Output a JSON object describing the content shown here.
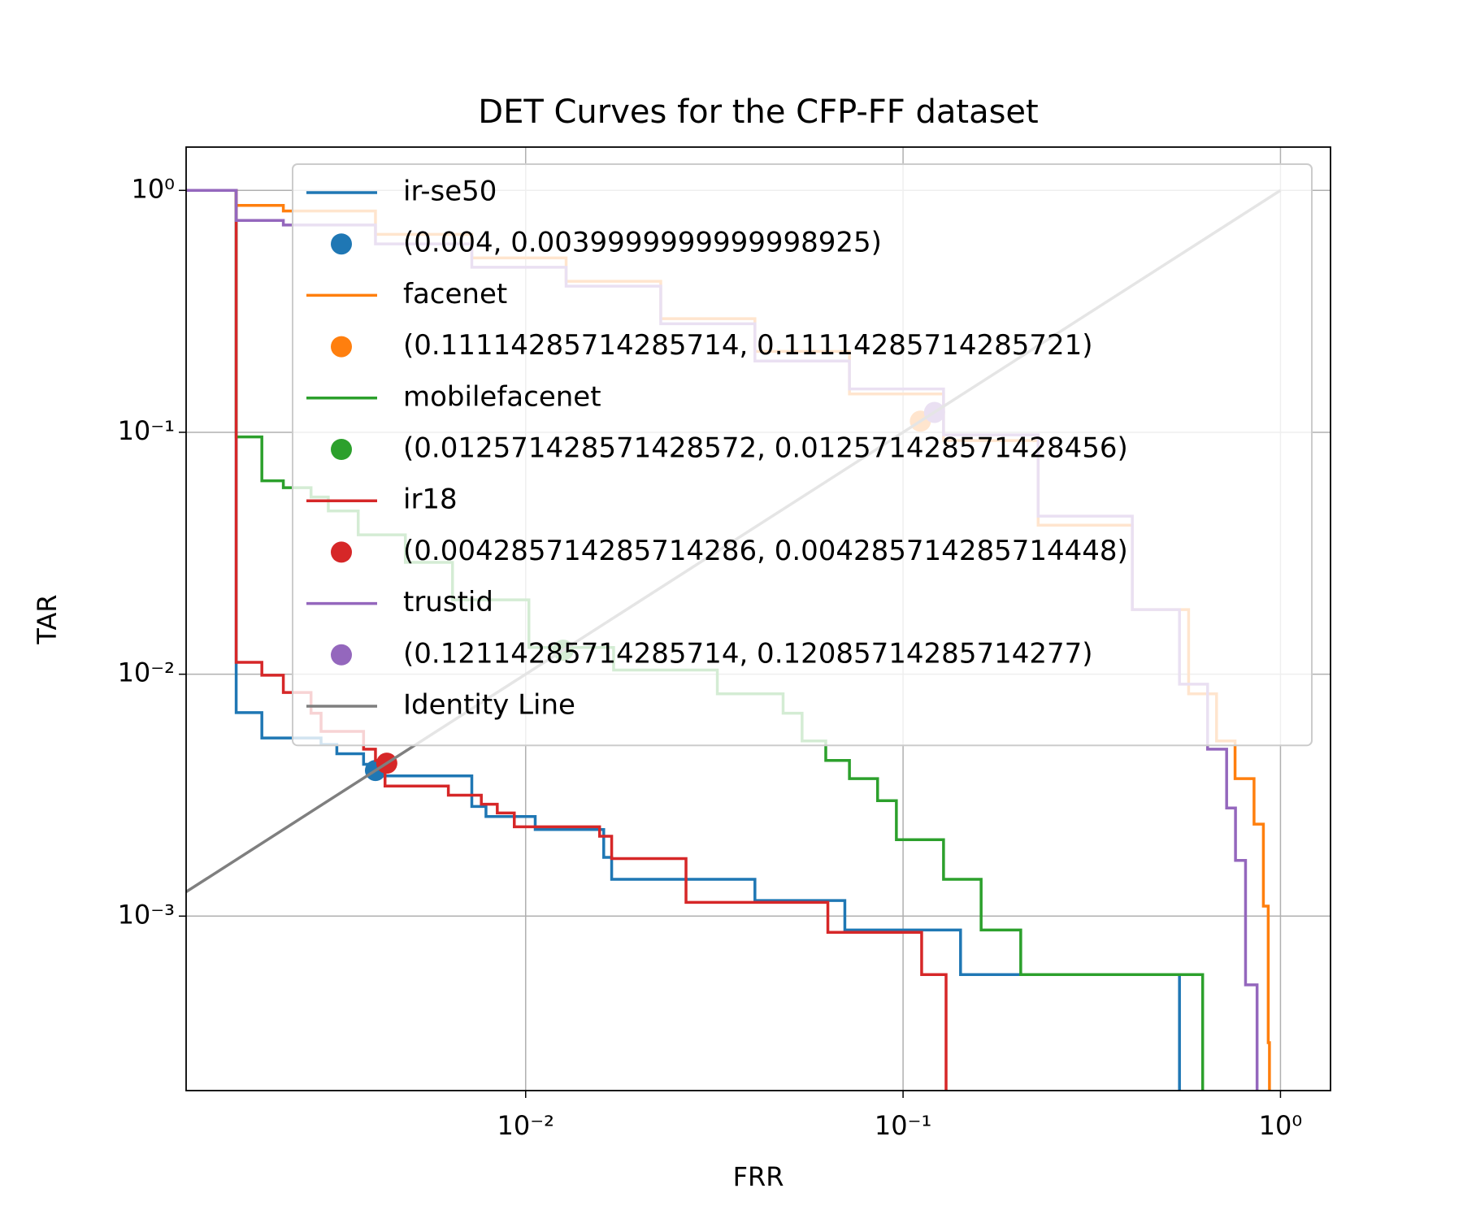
{
  "chart_data": {
    "type": "line",
    "title": "DET Curves for the CFP-FF dataset",
    "xlabel": "FRR",
    "ylabel": "TAR",
    "xscale": "log",
    "yscale": "log",
    "grid": true,
    "legend": "upper right",
    "drawstyle": "steps-post",
    "xlim": [
      0.00126,
      1.357
    ],
    "ylim": [
      0.00019,
      1.51
    ],
    "xticks": [
      {
        "value": 0.01,
        "label": "10⁻²"
      },
      {
        "value": 0.1,
        "label": "10⁻¹"
      },
      {
        "value": 1,
        "label": "10⁰"
      }
    ],
    "yticks": [
      {
        "value": 0.001,
        "label": "10⁻³"
      },
      {
        "value": 0.01,
        "label": "10⁻²"
      },
      {
        "value": 0.1,
        "label": "10⁻¹"
      },
      {
        "value": 1,
        "label": "10⁰"
      }
    ],
    "series": [
      {
        "name": "ir-se50",
        "kind": "line",
        "color": "#1f77b4",
        "x": [
          0.00126,
          0.00171,
          0.002,
          0.00287,
          0.00316,
          0.00372,
          0.00405,
          0.0072,
          0.00785,
          0.0106,
          0.0161,
          0.0169,
          0.0405,
          0.0701,
          0.142,
          0.54
        ],
        "y": [
          1,
          0.00694,
          0.00545,
          0.00512,
          0.00469,
          0.00424,
          0.0038,
          0.00284,
          0.00258,
          0.00228,
          0.00175,
          0.00142,
          0.00116,
          0.000876,
          0.000573,
          0.0001
        ]
      },
      {
        "name": "(0.004, 0.0039999999999998925)",
        "kind": "point",
        "color": "#1f77b4",
        "x": [
          0.004
        ],
        "y": [
          0.004
        ]
      },
      {
        "name": "facenet",
        "kind": "line",
        "color": "#ff7f0e",
        "x": [
          0.00126,
          0.00171,
          0.00228,
          0.004,
          0.0072,
          0.0128,
          0.0228,
          0.0405,
          0.0721,
          0.128,
          0.228,
          0.405,
          0.571,
          0.677,
          0.758,
          0.851,
          0.901,
          0.928,
          0.935
        ],
        "y": [
          1,
          0.867,
          0.822,
          0.658,
          0.526,
          0.421,
          0.295,
          0.216,
          0.144,
          0.0924,
          0.0413,
          0.0185,
          0.0083,
          0.0053,
          0.0037,
          0.0024,
          0.0011,
          0.0003,
          0.0001
        ]
      },
      {
        "name": "(0.11114285714285714, 0.11114285714285721)",
        "kind": "point",
        "color": "#ff7f0e",
        "x": [
          0.11114285714285714
        ],
        "y": [
          0.11114285714285721
        ]
      },
      {
        "name": "mobilefacenet",
        "kind": "line",
        "color": "#2ca02c",
        "x": [
          0.00126,
          0.00171,
          0.002,
          0.00228,
          0.0027,
          0.003,
          0.0036,
          0.0048,
          0.0064,
          0.0102,
          0.0171,
          0.0322,
          0.0481,
          0.054,
          0.0624,
          0.0721,
          0.0856,
          0.096,
          0.128,
          0.161,
          0.205,
          0.622
        ],
        "y": [
          1,
          0.0957,
          0.063,
          0.059,
          0.054,
          0.0473,
          0.0377,
          0.029,
          0.0203,
          0.0129,
          0.0104,
          0.0083,
          0.0069,
          0.0053,
          0.0044,
          0.0037,
          0.003,
          0.00207,
          0.00142,
          0.000876,
          0.000573,
          0.0001
        ]
      },
      {
        "name": "(0.012571428571428572, 0.012571428571428456)",
        "kind": "point",
        "color": "#2ca02c",
        "x": [
          0.012571428571428572
        ],
        "y": [
          0.012571428571428456
        ]
      },
      {
        "name": "ir18",
        "kind": "line",
        "color": "#d62728",
        "x": [
          0.00126,
          0.00171,
          0.002,
          0.00228,
          0.0027,
          0.00287,
          0.00372,
          0.004,
          0.00424,
          0.00624,
          0.00763,
          0.00841,
          0.00933,
          0.0157,
          0.0169,
          0.0266,
          0.0632,
          0.112,
          0.13
        ],
        "y": [
          1,
          0.0112,
          0.0099,
          0.0084,
          0.0069,
          0.0058,
          0.0049,
          0.0044,
          0.00345,
          0.00316,
          0.0029,
          0.00267,
          0.00234,
          0.00214,
          0.00173,
          0.00114,
          0.000857,
          0.000573,
          0.0001
        ]
      },
      {
        "name": "(0.004285714285714286, 0.004285714285714448)",
        "kind": "point",
        "color": "#d62728",
        "x": [
          0.004285714285714286
        ],
        "y": [
          0.004285714285714448
        ]
      },
      {
        "name": "trustid",
        "kind": "line",
        "color": "#9467bd",
        "x": [
          0.00126,
          0.00171,
          0.00228,
          0.004,
          0.0072,
          0.0128,
          0.0228,
          0.0405,
          0.0721,
          0.128,
          0.228,
          0.405,
          0.54,
          0.641,
          0.72,
          0.76,
          0.808,
          0.867
        ],
        "y": [
          1,
          0.751,
          0.719,
          0.601,
          0.481,
          0.402,
          0.281,
          0.197,
          0.151,
          0.0976,
          0.045,
          0.0185,
          0.0091,
          0.0049,
          0.0028,
          0.0017,
          0.00052,
          0.0001
        ]
      },
      {
        "name": "(0.12114285714285714, 0.12085714285714277)",
        "kind": "point",
        "color": "#9467bd",
        "x": [
          0.12114285714285714
        ],
        "y": [
          0.12085714285714277
        ]
      },
      {
        "name": "Identity Line",
        "kind": "line",
        "straight": true,
        "color": "#7f7f7f",
        "x": [
          0.00126,
          1
        ],
        "y": [
          0.00126,
          1
        ]
      }
    ]
  }
}
